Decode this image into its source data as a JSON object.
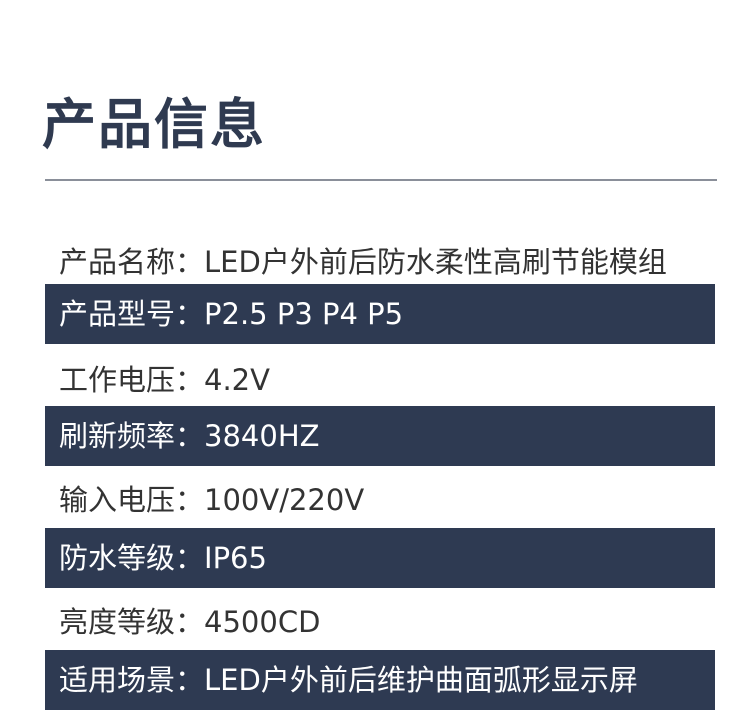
{
  "title": "产品信息",
  "rows": [
    {
      "label": "产品名称：",
      "value": "LED户外前后防水柔性高刷节能模组"
    },
    {
      "label": "产品型号：",
      "value": "P2.5 P3 P4 P5"
    },
    {
      "label": "工作电压：",
      "value": "4.2V"
    },
    {
      "label": "刷新频率：",
      "value": "3840HZ"
    },
    {
      "label": "输入电压：",
      "value": "100V/220V"
    },
    {
      "label": "防水等级：",
      "value": "IP65"
    },
    {
      "label": "亮度等级：",
      "value": "4500CD"
    },
    {
      "label": "适用场景：",
      "value": "LED户外前后维护曲面弧形显示屏"
    }
  ],
  "colors": {
    "band": "#2e3a52",
    "title": "#2f3a50"
  }
}
